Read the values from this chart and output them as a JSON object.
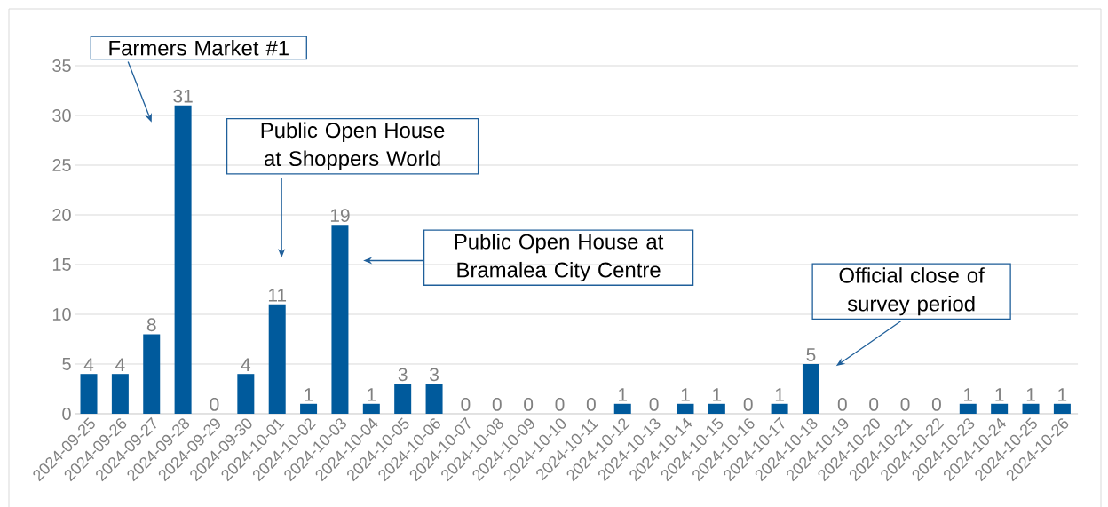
{
  "chart_data": {
    "type": "bar",
    "categories": [
      "2024-09-25",
      "2024-09-26",
      "2024-09-27",
      "2024-09-28",
      "2024-09-29",
      "2024-09-30",
      "2024-10-01",
      "2024-10-02",
      "2024-10-03",
      "2024-10-04",
      "2024-10-05",
      "2024-10-06",
      "2024-10-07",
      "2024-10-08",
      "2024-10-09",
      "2024-10-10",
      "2024-10-11",
      "2024-10-12",
      "2024-10-13",
      "2024-10-14",
      "2024-10-15",
      "2024-10-16",
      "2024-10-17",
      "2024-10-18",
      "2024-10-19",
      "2024-10-20",
      "2024-10-21",
      "2024-10-22",
      "2024-10-23",
      "2024-10-24",
      "2024-10-25",
      "2024-10-26"
    ],
    "values": [
      4,
      4,
      8,
      31,
      0,
      4,
      11,
      1,
      19,
      1,
      3,
      3,
      0,
      0,
      0,
      0,
      0,
      1,
      0,
      1,
      1,
      0,
      1,
      5,
      0,
      0,
      0,
      0,
      1,
      1,
      1,
      1
    ],
    "color": "#005a9c",
    "ylim": [
      0,
      35
    ],
    "yticks": [
      0,
      5,
      10,
      15,
      20,
      25,
      30,
      35
    ],
    "grid": "y",
    "data_labels": true,
    "annotations": [
      "Farmers Market #1",
      "Public Open House at Shoppers World",
      "Public Open House at Bramalea City Centre",
      "Official close of survey period"
    ]
  }
}
